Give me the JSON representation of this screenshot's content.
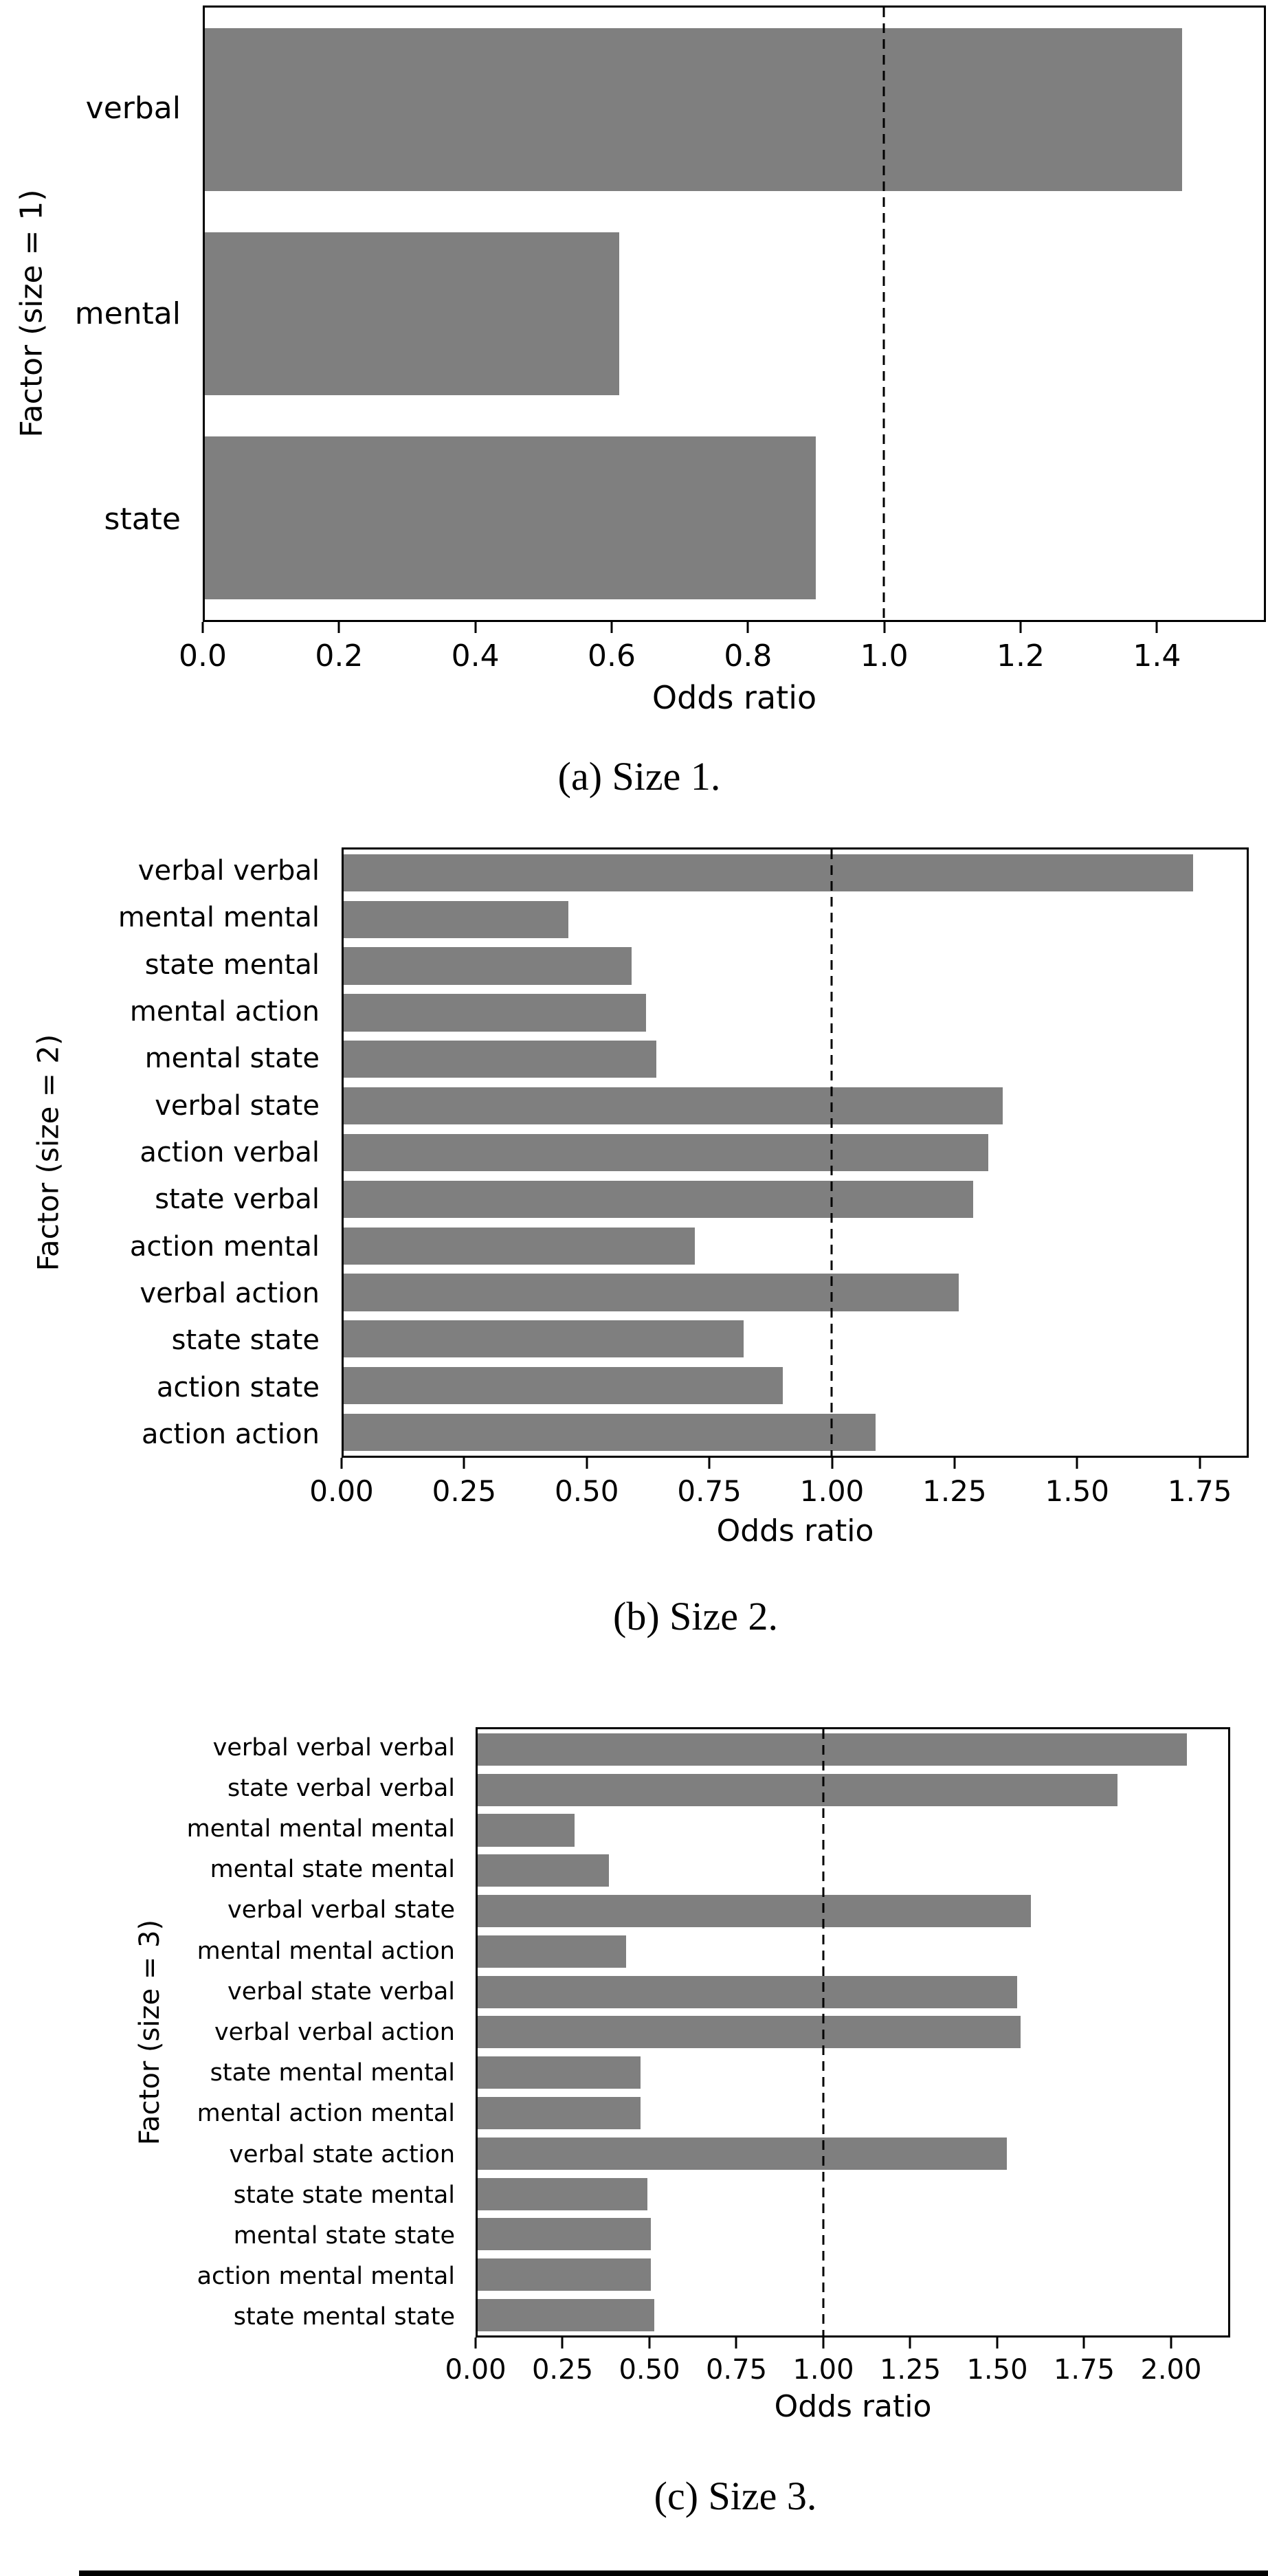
{
  "page": {
    "background_color": "#ffffff",
    "text_color": "#000000"
  },
  "chart_data": [
    {
      "type": "bar",
      "orientation": "horizontal",
      "caption": "(a) Size 1.",
      "ylabel": "Factor (size = 1)",
      "xlabel": "Odds ratio",
      "categories": [
        "verbal",
        "mental",
        "state"
      ],
      "values": [
        1.44,
        0.61,
        0.9
      ],
      "xlim": [
        0,
        1.56
      ],
      "xticks": [
        "0.0",
        "0.2",
        "0.4",
        "0.6",
        "0.8",
        "1.0",
        "1.2",
        "1.4"
      ],
      "xtick_values": [
        0.0,
        0.2,
        0.4,
        0.6,
        0.8,
        1.0,
        1.2,
        1.4
      ],
      "reference_line_x": 1.0,
      "reference_line_style": "dashed",
      "reference_line_color": "#000000",
      "bar_color": "#7f7f7f",
      "grid": false,
      "legend": null
    },
    {
      "type": "bar",
      "orientation": "horizontal",
      "caption": "(b) Size 2.",
      "ylabel": "Factor (size = 2)",
      "xlabel": "Odds ratio",
      "categories": [
        "verbal verbal",
        "mental mental",
        "state mental",
        "mental action",
        "mental state",
        "verbal state",
        "action verbal",
        "state verbal",
        "action mental",
        "verbal action",
        "state state",
        "action state",
        "action action"
      ],
      "values": [
        1.74,
        0.46,
        0.59,
        0.62,
        0.64,
        1.35,
        1.32,
        1.29,
        0.72,
        1.26,
        0.82,
        0.9,
        1.09
      ],
      "xlim": [
        0,
        1.85
      ],
      "xticks": [
        "0.00",
        "0.25",
        "0.50",
        "0.75",
        "1.00",
        "1.25",
        "1.50",
        "1.75"
      ],
      "xtick_values": [
        0.0,
        0.25,
        0.5,
        0.75,
        1.0,
        1.25,
        1.5,
        1.75
      ],
      "reference_line_x": 1.0,
      "reference_line_style": "dashed",
      "reference_line_color": "#000000",
      "bar_color": "#7f7f7f",
      "grid": false,
      "legend": null
    },
    {
      "type": "bar",
      "orientation": "horizontal",
      "caption": "(c) Size 3.",
      "ylabel": "Factor (size = 3)",
      "xlabel": "Odds ratio",
      "categories": [
        "verbal verbal verbal",
        "state verbal verbal",
        "mental mental mental",
        "mental state mental",
        "verbal verbal state",
        "mental mental action",
        "verbal state verbal",
        "verbal verbal action",
        "state mental mental",
        "mental action mental",
        "verbal state action",
        "state state mental",
        "mental state state",
        "action mental mental",
        "state mental state"
      ],
      "values": [
        2.05,
        1.85,
        0.28,
        0.38,
        1.6,
        0.43,
        1.56,
        1.57,
        0.47,
        0.47,
        1.53,
        0.49,
        0.5,
        0.5,
        0.51
      ],
      "xlim": [
        0,
        2.17
      ],
      "xticks": [
        "0.00",
        "0.25",
        "0.50",
        "0.75",
        "1.00",
        "1.25",
        "1.50",
        "1.75",
        "2.00"
      ],
      "xtick_values": [
        0.0,
        0.25,
        0.5,
        0.75,
        1.0,
        1.25,
        1.5,
        1.75,
        2.0
      ],
      "reference_line_x": 1.0,
      "reference_line_style": "dashed",
      "reference_line_color": "#000000",
      "bar_color": "#7f7f7f",
      "grid": false,
      "legend": null
    }
  ]
}
